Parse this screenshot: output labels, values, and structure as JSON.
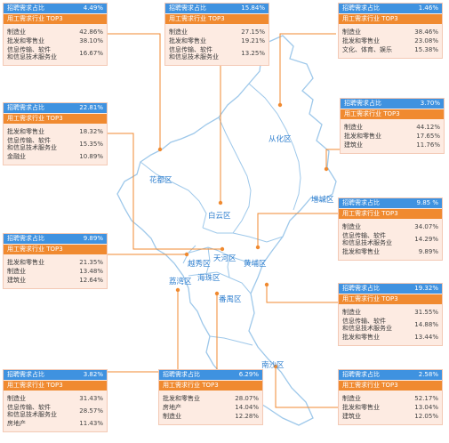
{
  "labels": {
    "share_label": "招聘需求占比",
    "top3_label": "用工需求行业 TOP3"
  },
  "colors": {
    "header_blue": "#3f92e0",
    "header_orange": "#f08a30",
    "card_bg": "#fdebe2",
    "line_orange": "#f08a30",
    "district_text": "#2f7fcf",
    "map_outline": "#9ec8ea"
  },
  "districts": {
    "huadu": "花都区",
    "baiyun": "白云区",
    "conghua": "从化区",
    "zengcheng": "增城区",
    "tianhe": "天河区",
    "huangpu": "黄埔区",
    "liwan": "荔湾区",
    "yuexiu": "越秀区",
    "haizhu": "海珠区",
    "panyu": "番禺区",
    "nansha": "南沙区"
  },
  "cards": [
    {
      "id": "c1",
      "pct": "4.49%",
      "items": [
        {
          "name": "制造业",
          "val": "42.86%"
        },
        {
          "name": "批发和零售业",
          "val": "38.10%"
        },
        {
          "name": "信息传输、软件\n和信息技术服务业",
          "val": "16.67%"
        }
      ]
    },
    {
      "id": "c2",
      "pct": "15.84%",
      "items": [
        {
          "name": "制造业",
          "val": "27.15%"
        },
        {
          "name": "批发和零售业",
          "val": "19.21%"
        },
        {
          "name": "信息传输、软件\n和信息技术服务业",
          "val": "13.25%"
        }
      ]
    },
    {
      "id": "c3",
      "pct": "1.46%",
      "items": [
        {
          "name": "制造业",
          "val": "38.46%"
        },
        {
          "name": "批发和零售业",
          "val": "23.08%"
        },
        {
          "name": "文化、体育、娱乐",
          "val": "15.38%"
        }
      ]
    },
    {
      "id": "c4",
      "pct": "22.81%",
      "items": [
        {
          "name": "批发和零售业",
          "val": "18.32%"
        },
        {
          "name": "信息传输、软件\n和信息技术服务业",
          "val": "15.35%"
        },
        {
          "name": "金融业",
          "val": "10.89%"
        }
      ]
    },
    {
      "id": "c5",
      "pct": "3.70%",
      "items": [
        {
          "name": "制造业",
          "val": "44.12%"
        },
        {
          "name": "批发和零售业",
          "val": "17.65%"
        },
        {
          "name": "建筑业",
          "val": "11.76%"
        }
      ]
    },
    {
      "id": "c6",
      "pct": "9.85 %",
      "items": [
        {
          "name": "制造业",
          "val": "34.07%"
        },
        {
          "name": "信息传输、软件\n和信息技术服务业",
          "val": "14.29%"
        },
        {
          "name": "批发和零售业",
          "val": "9.89%"
        }
      ]
    },
    {
      "id": "c7",
      "pct": "9.89%",
      "items": [
        {
          "name": "批发和零售业",
          "val": "21.35%"
        },
        {
          "name": "制造业",
          "val": "13.48%"
        },
        {
          "name": "建筑业",
          "val": "12.64%"
        }
      ]
    },
    {
      "id": "c8",
      "pct": "19.32%",
      "items": [
        {
          "name": "制造业",
          "val": "31.55%"
        },
        {
          "name": "信息传输、软件\n和信息技术服务业",
          "val": "14.88%"
        },
        {
          "name": "批发和零售业",
          "val": "13.44%"
        }
      ]
    },
    {
      "id": "c9",
      "pct": "3.82%",
      "items": [
        {
          "name": "制造业",
          "val": "31.43%"
        },
        {
          "name": "信息传输、软件\n和信息技术服务业",
          "val": "28.57%"
        },
        {
          "name": "房地产",
          "val": "11.43%"
        }
      ]
    },
    {
      "id": "c10",
      "pct": "6.29%",
      "items": [
        {
          "name": "批发和零售业",
          "val": "28.07%"
        },
        {
          "name": "房地产",
          "val": "14.04%"
        },
        {
          "name": "制造业",
          "val": "12.28%"
        }
      ]
    },
    {
      "id": "c11",
      "pct": "2.58%",
      "items": [
        {
          "name": "制造业",
          "val": "52.17%"
        },
        {
          "name": "批发和零售业",
          "val": "13.04%"
        },
        {
          "name": "建筑业",
          "val": "12.05%"
        }
      ]
    }
  ]
}
